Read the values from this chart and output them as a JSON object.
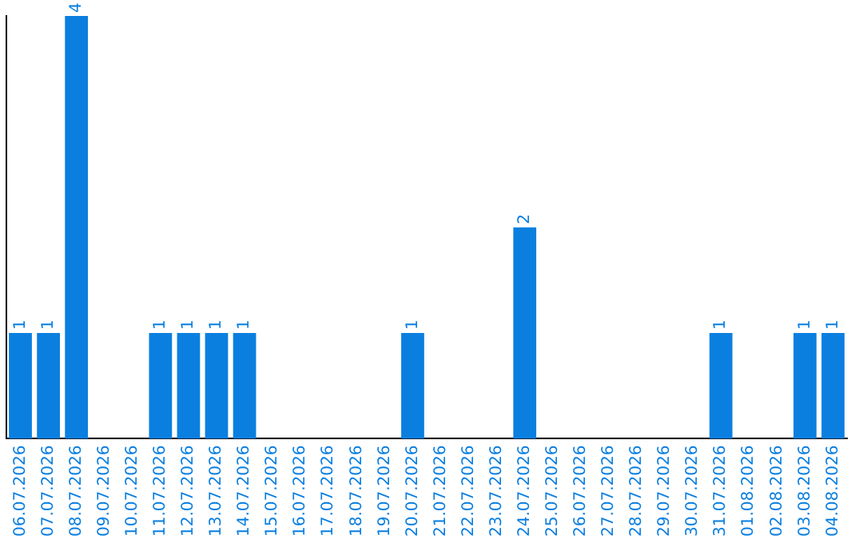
{
  "chart_data": {
    "type": "bar",
    "categories": [
      "06.07.2026",
      "07.07.2026",
      "08.07.2026",
      "09.07.2026",
      "10.07.2026",
      "11.07.2026",
      "12.07.2026",
      "13.07.2026",
      "14.07.2026",
      "15.07.2026",
      "16.07.2026",
      "17.07.2026",
      "18.07.2026",
      "19.07.2026",
      "20.07.2026",
      "21.07.2026",
      "22.07.2026",
      "23.07.2026",
      "24.07.2026",
      "25.07.2026",
      "26.07.2026",
      "27.07.2026",
      "28.07.2026",
      "29.07.2026",
      "30.07.2026",
      "31.07.2026",
      "01.08.2026",
      "02.08.2026",
      "03.08.2026",
      "04.08.2026"
    ],
    "values": [
      1,
      1,
      4,
      0,
      0,
      1,
      1,
      1,
      1,
      0,
      0,
      0,
      0,
      0,
      1,
      0,
      0,
      0,
      2,
      0,
      0,
      0,
      0,
      0,
      0,
      1,
      0,
      0,
      1,
      1
    ],
    "value_labels": [
      "1",
      "1",
      "4",
      null,
      null,
      "1",
      "1",
      "1",
      "1",
      null,
      null,
      null,
      null,
      null,
      "1",
      null,
      null,
      null,
      "2",
      null,
      null,
      null,
      null,
      null,
      null,
      "1",
      null,
      null,
      "1",
      "1"
    ],
    "color": "#0a7fe0",
    "grid": false,
    "legend": false,
    "tick_labels": "x"
  }
}
